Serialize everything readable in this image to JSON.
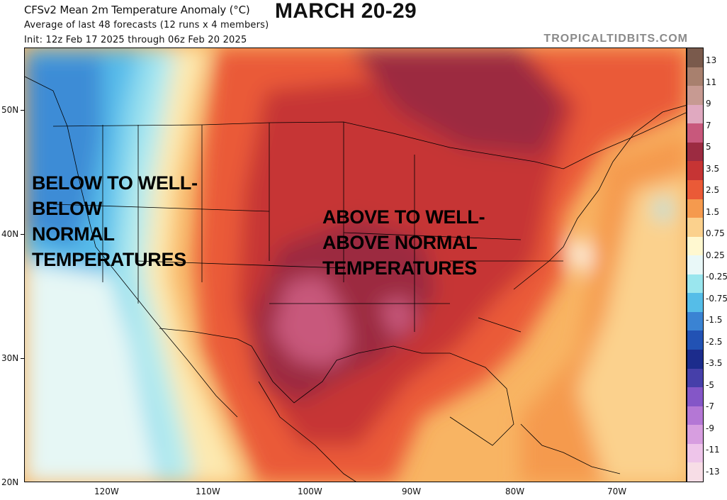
{
  "header": {
    "title": "CFSv2 Mean 2m Temperature Anomaly (°C)",
    "subtitle": "Average of last 48 forecasts (12 runs x 4 members)",
    "init": "Init: 12z Feb 17 2025 through 06z Feb 20 2025",
    "banner": "MARCH 20-29",
    "brand": "TROPICALTIDBITS.COM"
  },
  "map": {
    "annotation_west": "BELOW TO WELL-\nBELOW\nNORMAL\nTEMPERATURES",
    "annotation_east": "ABOVE TO WELL-\nABOVE NORMAL\nTEMPERATURES",
    "lat_labels": [
      "50N",
      "40N",
      "30N",
      "20N"
    ],
    "lon_labels": [
      "120W",
      "110W",
      "100W",
      "90W",
      "80W",
      "70W"
    ]
  },
  "colorbar": {
    "labels": [
      "13",
      "11",
      "9",
      "7",
      "5",
      "3.5",
      "2.5",
      "1.5",
      "0.75",
      "0.25",
      "-0.25",
      "-0.75",
      "-1.5",
      "-2.5",
      "-3.5",
      "-5",
      "-7",
      "-9",
      "-11",
      "-13"
    ],
    "colors": [
      "#7a5a4c",
      "#a8806e",
      "#c79a92",
      "#e0a9c0",
      "#c8587c",
      "#9c2b41",
      "#c63434",
      "#ea5a37",
      "#f59a4e",
      "#fbd18d",
      "#fff8d0",
      "#e9f8f8",
      "#9ae6ee",
      "#55bde8",
      "#3a83d3",
      "#2252b4",
      "#1c2c8c",
      "#463fa9",
      "#8456c7",
      "#b477d5",
      "#d79ee0",
      "#eec5ea",
      "#f7dde6"
    ]
  }
}
